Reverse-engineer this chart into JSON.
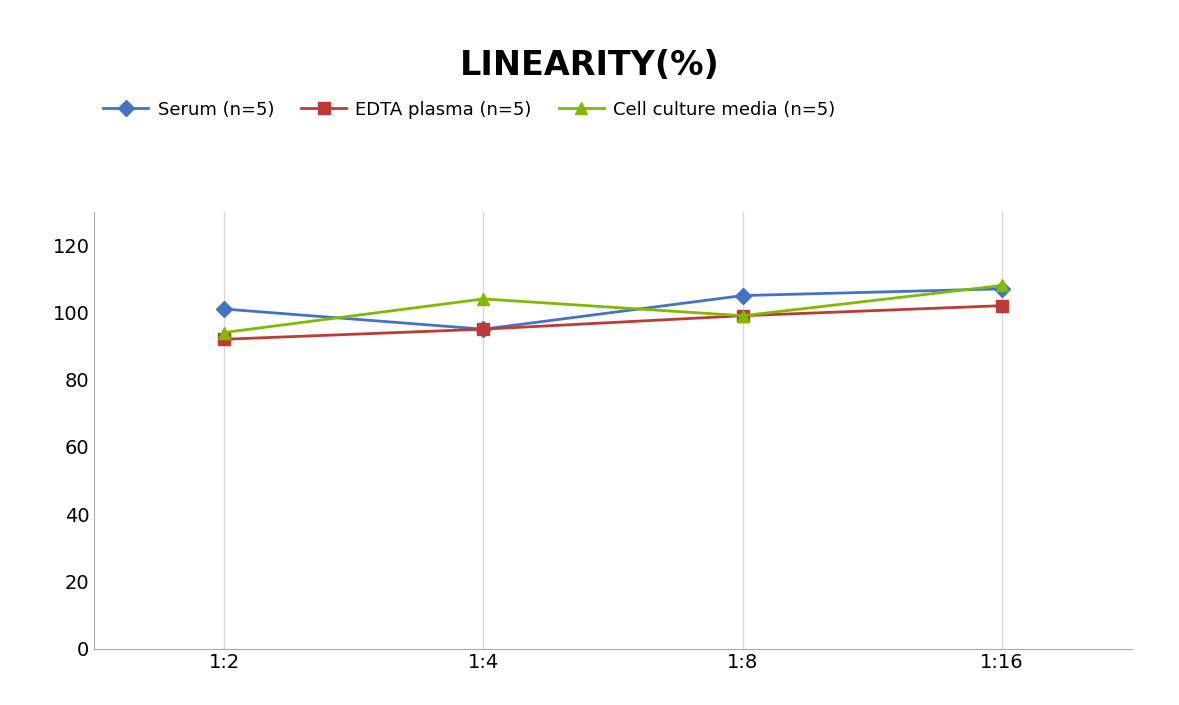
{
  "title": "LINEARITY(%)",
  "title_fontsize": 24,
  "title_fontweight": "bold",
  "x_labels": [
    "1:2",
    "1:4",
    "1:8",
    "1:16"
  ],
  "x_positions": [
    0,
    1,
    2,
    3
  ],
  "series": [
    {
      "label": "Serum (n=5)",
      "values": [
        101,
        95,
        105,
        107
      ],
      "color": "#4472C4",
      "marker": "D",
      "markersize": 8,
      "linewidth": 2
    },
    {
      "label": "EDTA plasma (n=5)",
      "values": [
        92,
        95,
        99,
        102
      ],
      "color": "#BE3A34",
      "marker": "s",
      "markersize": 8,
      "linewidth": 2
    },
    {
      "label": "Cell culture media (n=5)",
      "values": [
        94,
        104,
        99,
        108
      ],
      "color": "#7FBA00",
      "marker": "^",
      "markersize": 9,
      "linewidth": 2
    }
  ],
  "ylim": [
    0,
    130
  ],
  "yticks": [
    0,
    20,
    40,
    60,
    80,
    100,
    120
  ],
  "grid_color": "#D9D9D9",
  "grid_linewidth": 1,
  "background_color": "#FFFFFF",
  "legend_fontsize": 13,
  "tick_fontsize": 14
}
